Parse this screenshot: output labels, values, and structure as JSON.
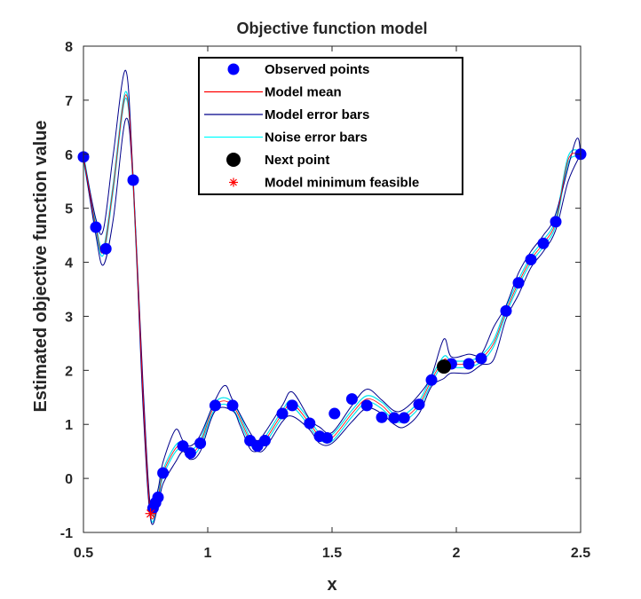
{
  "chart_data": {
    "type": "line",
    "title": "Objective function model",
    "xlabel": "x",
    "ylabel": "Estimated objective function value",
    "xlim": [
      0.5,
      2.5
    ],
    "ylim": [
      -1,
      8
    ],
    "xticks": [
      0.5,
      1,
      1.5,
      2,
      2.5
    ],
    "xtick_labels": [
      "0.5",
      "1",
      "1.5",
      "2",
      "2.5"
    ],
    "yticks": [
      -1,
      0,
      1,
      2,
      3,
      4,
      5,
      6,
      7,
      8
    ],
    "ytick_labels": [
      "-1",
      "0",
      "1",
      "2",
      "3",
      "4",
      "5",
      "6",
      "7",
      "8"
    ],
    "grid": false,
    "legend_position": "top-center",
    "legend": [
      {
        "label": "Observed points",
        "marker": "dot",
        "color": "#0000ff"
      },
      {
        "label": "Model mean",
        "marker": "line",
        "color": "#ff0000"
      },
      {
        "label": "Model error bars",
        "marker": "line",
        "color": "#00008b"
      },
      {
        "label": "Noise error bars",
        "marker": "line",
        "color": "#00ffff"
      },
      {
        "label": "Next point",
        "marker": "dot",
        "color": "#000000"
      },
      {
        "label": "Model minimum feasible",
        "marker": "star",
        "color": "#ff0000"
      }
    ],
    "observed_points": {
      "x": [
        0.5,
        0.55,
        0.59,
        0.7,
        0.78,
        0.79,
        0.8,
        0.82,
        0.9,
        0.93,
        0.97,
        1.03,
        1.1,
        1.17,
        1.2,
        1.23,
        1.3,
        1.34,
        1.41,
        1.45,
        1.48,
        1.51,
        1.58,
        1.64,
        1.7,
        1.75,
        1.79,
        1.85,
        1.9,
        1.98,
        2.05,
        2.1,
        2.2,
        2.25,
        2.3,
        2.35,
        2.4,
        2.5
      ],
      "y": [
        5.95,
        4.65,
        4.25,
        5.52,
        -0.55,
        -0.45,
        -0.35,
        0.1,
        0.6,
        0.47,
        0.65,
        1.35,
        1.35,
        0.7,
        0.6,
        0.7,
        1.2,
        1.35,
        1.02,
        0.78,
        0.75,
        1.2,
        1.47,
        1.35,
        1.13,
        1.12,
        1.12,
        1.37,
        1.82,
        2.12,
        2.12,
        2.22,
        3.1,
        3.62,
        4.05,
        4.35,
        4.75,
        6.0
      ]
    },
    "model_mean": {
      "x": [
        0.5,
        0.55,
        0.58,
        0.62,
        0.67,
        0.7,
        0.74,
        0.77,
        0.8,
        0.82,
        0.87,
        0.9,
        0.93,
        0.97,
        1.03,
        1.1,
        1.17,
        1.2,
        1.23,
        1.3,
        1.34,
        1.41,
        1.45,
        1.5,
        1.58,
        1.64,
        1.7,
        1.75,
        1.79,
        1.85,
        1.9,
        1.95,
        1.98,
        2.05,
        2.1,
        2.15,
        2.2,
        2.25,
        2.3,
        2.35,
        2.4,
        2.45,
        2.5
      ],
      "y": [
        5.95,
        4.65,
        4.2,
        5.4,
        7.1,
        5.5,
        1.5,
        -0.65,
        -0.35,
        0.1,
        0.55,
        0.6,
        0.47,
        0.65,
        1.35,
        1.35,
        0.7,
        0.6,
        0.7,
        1.2,
        1.38,
        1.02,
        0.78,
        0.75,
        1.2,
        1.47,
        1.35,
        1.13,
        1.12,
        1.37,
        1.82,
        2.2,
        2.12,
        2.12,
        2.22,
        2.5,
        3.1,
        3.62,
        4.05,
        4.35,
        4.75,
        5.9,
        6.0
      ]
    },
    "model_error_upper": {
      "x": [
        0.5,
        0.55,
        0.58,
        0.62,
        0.67,
        0.7,
        0.74,
        0.77,
        0.8,
        0.82,
        0.87,
        0.9,
        0.93,
        0.97,
        1.03,
        1.07,
        1.1,
        1.17,
        1.2,
        1.23,
        1.3,
        1.34,
        1.41,
        1.45,
        1.5,
        1.58,
        1.64,
        1.7,
        1.75,
        1.79,
        1.85,
        1.9,
        1.95,
        1.98,
        2.05,
        2.1,
        2.15,
        2.2,
        2.25,
        2.3,
        2.35,
        2.4,
        2.48,
        2.5
      ],
      "y": [
        5.95,
        4.8,
        4.6,
        6.0,
        7.55,
        5.55,
        1.7,
        -0.55,
        -0.2,
        0.3,
        0.9,
        0.7,
        0.6,
        0.8,
        1.45,
        1.72,
        1.45,
        0.85,
        0.7,
        0.85,
        1.35,
        1.6,
        1.1,
        0.95,
        0.85,
        1.35,
        1.65,
        1.45,
        1.25,
        1.28,
        1.55,
        1.9,
        2.58,
        2.25,
        2.3,
        2.3,
        2.8,
        3.2,
        3.8,
        4.2,
        4.5,
        4.9,
        6.25,
        6.0
      ]
    },
    "model_error_lower": {
      "x": [
        0.5,
        0.55,
        0.58,
        0.62,
        0.67,
        0.7,
        0.74,
        0.77,
        0.8,
        0.82,
        0.87,
        0.9,
        0.93,
        0.97,
        1.03,
        1.1,
        1.13,
        1.17,
        1.2,
        1.23,
        1.3,
        1.34,
        1.41,
        1.45,
        1.5,
        1.58,
        1.64,
        1.7,
        1.75,
        1.79,
        1.85,
        1.9,
        1.95,
        1.98,
        2.05,
        2.1,
        2.15,
        2.2,
        2.25,
        2.3,
        2.35,
        2.4,
        2.45,
        2.5
      ],
      "y": [
        5.95,
        4.5,
        3.95,
        4.8,
        6.65,
        5.45,
        1.3,
        -0.75,
        -0.5,
        -0.1,
        0.3,
        0.5,
        0.35,
        0.5,
        1.25,
        1.25,
        0.98,
        0.55,
        0.5,
        0.55,
        1.05,
        1.15,
        0.9,
        0.65,
        0.65,
        1.05,
        1.3,
        1.2,
        1.0,
        0.95,
        1.2,
        1.7,
        1.85,
        1.95,
        1.95,
        2.1,
        2.2,
        2.95,
        3.4,
        3.9,
        4.2,
        4.6,
        5.5,
        6.0
      ]
    },
    "next_point": {
      "x": 1.95,
      "y": 2.07
    },
    "model_minimum_feasible": {
      "x": 0.77,
      "y": -0.65
    }
  }
}
